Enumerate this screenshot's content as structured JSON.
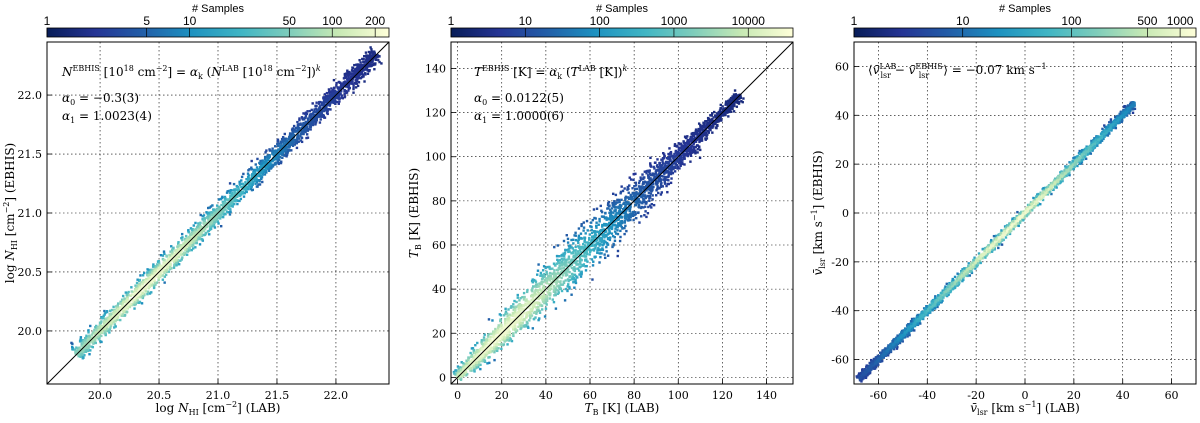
{
  "figure": {
    "colorbar_title": "# Samples"
  },
  "chart_data": [
    {
      "type": "heatmap",
      "xlabel": "log N_HI [cm^-2] (LAB)",
      "ylabel": "log N_HI [cm^-2] (EBHIS)",
      "xlim": [
        19.55,
        22.45
      ],
      "ylim": [
        19.55,
        22.45
      ],
      "xticks": [
        "20.0",
        "20.5",
        "21.0",
        "21.5",
        "22.0"
      ],
      "yticks": [
        "20.0",
        "20.5",
        "21.0",
        "21.5",
        "22.0"
      ],
      "grid": true,
      "colorbar": {
        "ticks": [
          "1",
          "5",
          "10",
          "50",
          "100",
          "200"
        ],
        "min": 1,
        "max": 250,
        "scale": "log"
      },
      "annotations": [
        "N^EBHIS [10^18 cm^-2] = α_k (N^LAB [10^18 cm^-2])^k",
        "α0 = -0.3(3)",
        "α1 = 1.0023(4)"
      ],
      "one_to_one_line": true,
      "distribution": {
        "x_start": 19.8,
        "x_end": 22.35,
        "x_peak": 20.4,
        "scatter": 0.07
      }
    },
    {
      "type": "heatmap",
      "xlabel": "T_B [K] (LAB)",
      "ylabel": "T_B [K] (EBHIS)",
      "xlim": [
        -3,
        152
      ],
      "ylim": [
        -3,
        152
      ],
      "xticks": [
        "0",
        "20",
        "40",
        "60",
        "80",
        "100",
        "120",
        "140"
      ],
      "yticks": [
        "0",
        "20",
        "40",
        "60",
        "80",
        "100",
        "120",
        "140"
      ],
      "grid": true,
      "colorbar": {
        "ticks": [
          "1",
          "10",
          "100",
          "1000",
          "10000"
        ],
        "min": 1,
        "max": 40000,
        "scale": "log"
      },
      "annotations": [
        "T^EBHIS [K] = α_k (T^LAB [K])^k",
        "α0 = 0.0122(5)",
        "α1 = 1.0000(6)"
      ],
      "one_to_one_line": true,
      "distribution": {
        "x_start": 0,
        "x_end": 128,
        "x_peak": 18,
        "scatter": 6
      }
    },
    {
      "type": "heatmap",
      "xlabel": "v̄_lsr [km s^-1] (LAB)",
      "ylabel": "v̄_lsr [km s^-1] (EBHIS)",
      "xlim": [
        -70,
        70
      ],
      "ylim": [
        -70,
        70
      ],
      "xticks": [
        "-60",
        "-40",
        "-20",
        "0",
        "20",
        "40",
        "60"
      ],
      "yticks": [
        "-60",
        "-40",
        "-20",
        "0",
        "20",
        "40",
        "60"
      ],
      "grid": true,
      "colorbar": {
        "ticks": [
          "1",
          "10",
          "100",
          "500",
          "1000"
        ],
        "min": 1,
        "max": 1400,
        "scale": "log"
      },
      "annotations": [
        "⟨v̄_lsr^LAB − v̄_lsr^EBHIS⟩ = −0.07 km s^-1"
      ],
      "one_to_one_line": false,
      "distribution": {
        "x_start": -68,
        "x_end": 45,
        "x_peak": -5,
        "scatter": 1.6
      }
    }
  ]
}
